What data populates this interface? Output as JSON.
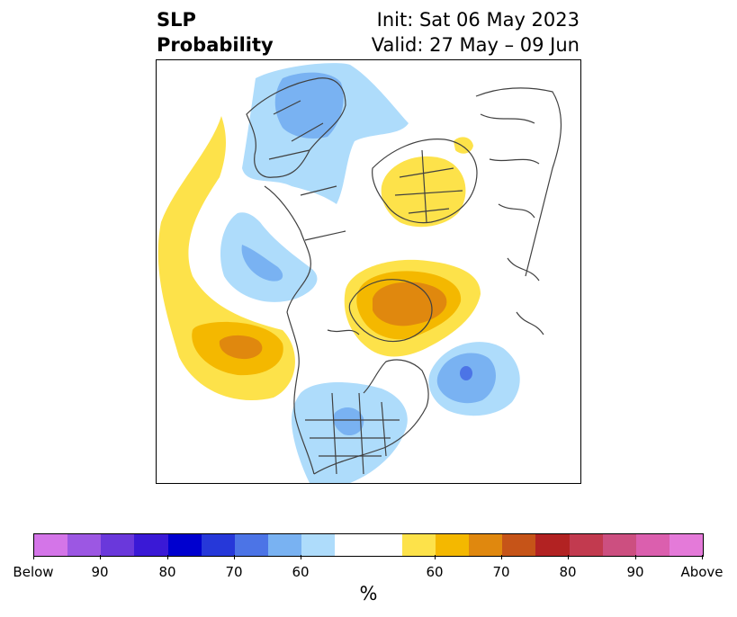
{
  "title": {
    "left_line1": "SLP",
    "left_line2": "Probability",
    "right_line1": "Init: Sat 06 May 2023",
    "right_line2": "Valid: 27 May – 09 Jun"
  },
  "colorbar": {
    "label": "%",
    "colors": [
      "#d475e8",
      "#9c57e3",
      "#6a38db",
      "#3a19d6",
      "#0000cf",
      "#2638d9",
      "#4c74e6",
      "#79b2f2",
      "#aedcfb",
      "#ffffff",
      "#ffffff",
      "#fde24a",
      "#f4b800",
      "#e0880e",
      "#c65418",
      "#b22222",
      "#c23a4f",
      "#cc4f80",
      "#db5fae",
      "#e47ad9"
    ],
    "ticks": [
      "Below",
      "90",
      "80",
      "70",
      "60",
      "60",
      "70",
      "80",
      "90",
      "Above"
    ]
  },
  "map": {
    "projection": "polar stereographic (North America / North Atlantic)",
    "colors": {
      "yellow": "#fde24a",
      "gold": "#f4b800",
      "orange": "#e0880e",
      "lightblue": "#aedcfb",
      "midblue": "#79b2f2",
      "blue": "#4c74e6",
      "borders": "#404040"
    }
  }
}
